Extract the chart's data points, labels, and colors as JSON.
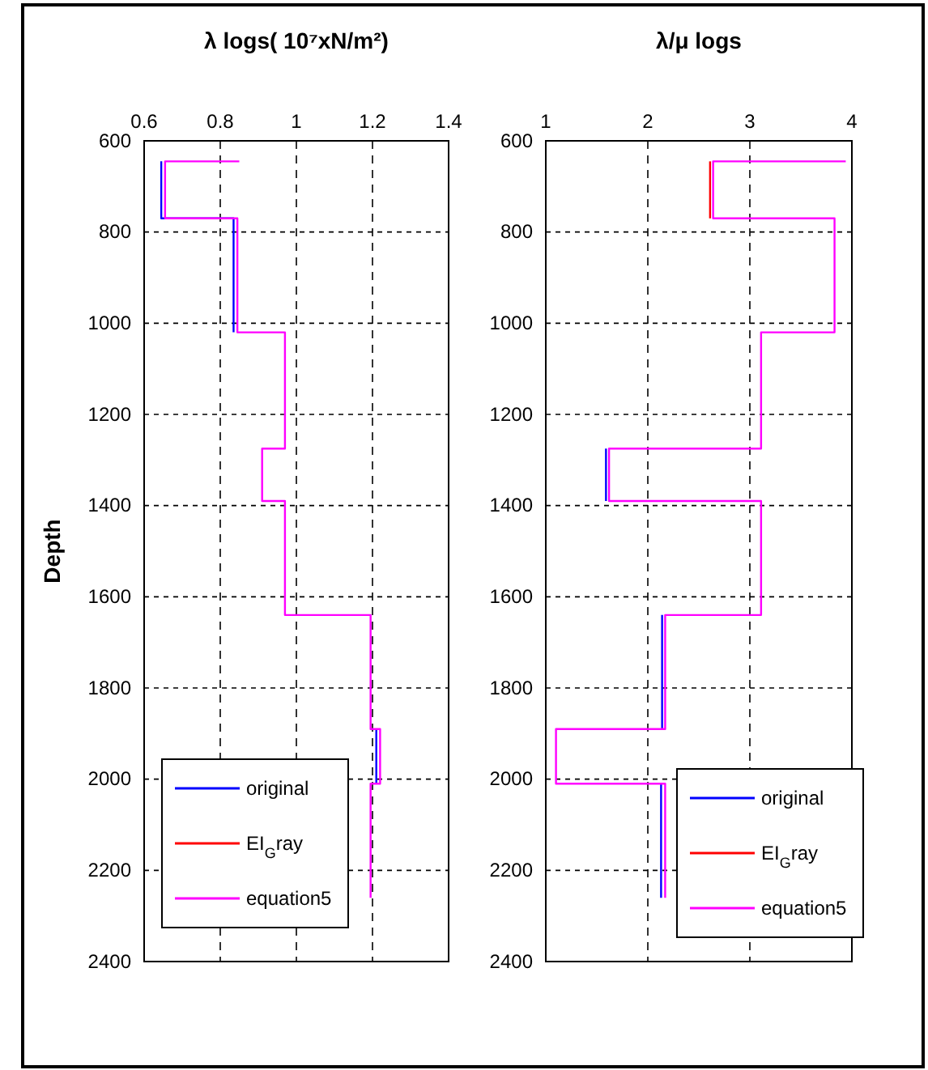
{
  "chart_data": [
    {
      "type": "line",
      "title": "λ logs( 10⁷xN/m²)",
      "ylabel": "Depth",
      "xlim": [
        0.6,
        1.4
      ],
      "xticks": [
        0.6,
        0.8,
        1,
        1.2,
        1.4
      ],
      "ylim": [
        2400,
        600
      ],
      "yticks": [
        600,
        800,
        1000,
        1200,
        1400,
        1600,
        1800,
        2000,
        2200,
        2400
      ],
      "grid": true,
      "legend": "bottom left",
      "series": [
        {
          "name": "original",
          "color": "#0000ff",
          "x": [
            null,
            0.645,
            0.645,
            0.835,
            0.835,
            null,
            null,
            null,
            null,
            null,
            null,
            null,
            null,
            1.21,
            1.21,
            null,
            null
          ],
          "values": [
            null,
            645,
            770,
            770,
            1020,
            null,
            null,
            null,
            null,
            null,
            null,
            null,
            null,
            1890,
            2010,
            null,
            null
          ]
        },
        {
          "name": "EI$_{G}$ray",
          "color": "#ff0000",
          "x": [
            null,
            null,
            null,
            null,
            null,
            null,
            null,
            null,
            null,
            null,
            null,
            null,
            null,
            null,
            null,
            null,
            null
          ],
          "values": [
            null,
            null,
            null,
            null,
            null,
            null,
            null,
            null,
            null,
            null,
            null,
            null,
            null,
            null,
            null,
            null,
            null
          ]
        },
        {
          "name": "equation5",
          "color": "#ff00ff",
          "x": [
            0.85,
            0.655,
            0.655,
            0.845,
            0.845,
            0.97,
            0.97,
            0.91,
            0.91,
            0.97,
            0.97,
            1.195,
            1.195,
            1.22,
            1.22,
            1.195,
            1.195
          ],
          "values": [
            645,
            645,
            770,
            770,
            1020,
            1020,
            1275,
            1275,
            1390,
            1390,
            1640,
            1640,
            1890,
            1890,
            2010,
            2010,
            2260
          ]
        }
      ]
    },
    {
      "type": "line",
      "title": "λ/μ logs",
      "xlim": [
        1,
        4
      ],
      "xticks": [
        1,
        2,
        3,
        4
      ],
      "ylim": [
        2400,
        600
      ],
      "yticks": [
        600,
        800,
        1000,
        1200,
        1400,
        1600,
        1800,
        2000,
        2200,
        2400
      ],
      "grid": true,
      "legend": "bottom right",
      "series": [
        {
          "name": "original",
          "color": "#0000ff",
          "x": [
            null,
            null,
            null,
            null,
            null,
            null,
            null,
            1.59,
            1.59,
            null,
            2.14,
            2.14,
            null,
            null,
            null,
            2.13,
            2.13
          ],
          "values": [
            null,
            null,
            null,
            null,
            null,
            null,
            null,
            1275,
            1390,
            null,
            1640,
            1890,
            null,
            null,
            null,
            2010,
            2260
          ]
        },
        {
          "name": "EI$_{G}$ray",
          "color": "#ff0000",
          "x": [
            null,
            2.61,
            2.61,
            null,
            null,
            null,
            null,
            null,
            null,
            null,
            null,
            null,
            null,
            null,
            null,
            null,
            null
          ],
          "values": [
            null,
            645,
            770,
            null,
            null,
            null,
            null,
            null,
            null,
            null,
            null,
            null,
            null,
            null,
            null,
            null,
            null
          ]
        },
        {
          "name": "equation5",
          "color": "#ff00ff",
          "x": [
            3.94,
            2.64,
            2.64,
            3.83,
            3.83,
            3.11,
            3.11,
            1.62,
            1.62,
            3.11,
            3.11,
            2.17,
            2.17,
            1.1,
            1.1,
            2.17,
            2.17
          ],
          "values": [
            645,
            645,
            770,
            770,
            1020,
            1020,
            1275,
            1275,
            1390,
            1390,
            1640,
            1640,
            1890,
            1890,
            2010,
            2010,
            2260
          ]
        }
      ]
    }
  ]
}
